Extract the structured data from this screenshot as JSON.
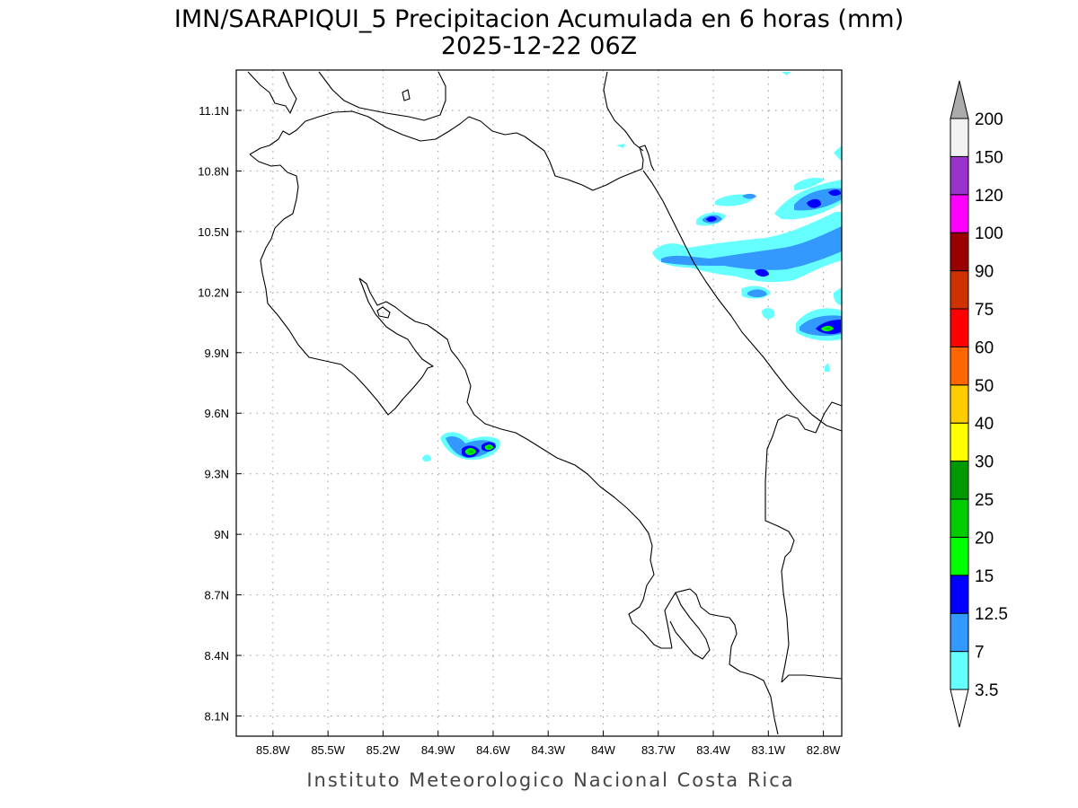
{
  "title": {
    "line1": "IMN/SARAPIQUI_5 Precipitacion Acumulada en 6 horas (mm)",
    "line2": "2025-12-22 06Z"
  },
  "credit": "Instituto Meteorologico Nacional Costa Rica",
  "map": {
    "lon_range": [
      -86.0,
      -82.7
    ],
    "lat_range": [
      8.0,
      11.3
    ],
    "lon_ticks": [
      "85.8W",
      "85.5W",
      "85.2W",
      "84.9W",
      "84.6W",
      "84.3W",
      "84W",
      "83.7W",
      "83.4W",
      "83.1W",
      "82.8W"
    ],
    "lat_ticks": [
      "8.1N",
      "8.4N",
      "8.7N",
      "9N",
      "9.3N",
      "9.6N",
      "9.9N",
      "10.2N",
      "10.5N",
      "10.8N",
      "11.1N"
    ],
    "grid": true
  },
  "colorbar": {
    "labels": [
      "3.5",
      "7",
      "12.5",
      "15",
      "20",
      "25",
      "30",
      "40",
      "50",
      "60",
      "75",
      "90",
      "100",
      "120",
      "150",
      "200"
    ],
    "colors": [
      "#ffffff",
      "#66ffff",
      "#3399ff",
      "#0000ff",
      "#00ff00",
      "#00cc00",
      "#009900",
      "#ffff00",
      "#ffcc00",
      "#ff6600",
      "#ff0000",
      "#cc3300",
      "#990000",
      "#ff00ff",
      "#9933cc",
      "#f2f2f2",
      "#aaaaaa"
    ],
    "extend": "both"
  }
}
